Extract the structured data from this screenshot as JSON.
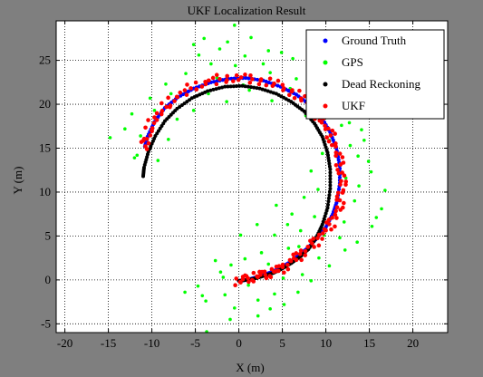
{
  "window": {
    "background": "#7f7f7f"
  },
  "chart_data": {
    "type": "scatter",
    "title": "UKF Localization Result",
    "xlabel": "X (m)",
    "ylabel": "Y (m)",
    "xlim": [
      -21,
      24
    ],
    "ylim": [
      -6,
      29.5
    ],
    "xticks": [
      -20,
      -15,
      -10,
      -5,
      0,
      5,
      10,
      15,
      20
    ],
    "yticks": [
      -5,
      0,
      5,
      10,
      15,
      20,
      25
    ],
    "xtick_labels": [
      "-20",
      "-15",
      "-10",
      "-5",
      "0",
      "5",
      "10",
      "15",
      "20"
    ],
    "ytick_labels": [
      "-5",
      "0",
      "5",
      "10",
      "15",
      "20",
      "25"
    ],
    "grid": "dotted",
    "legend_position": "top-right",
    "legend": [
      {
        "label": "Ground Truth",
        "color": "#0000ff"
      },
      {
        "label": "GPS",
        "color": "#00ff00"
      },
      {
        "label": "Dead Reckoning",
        "color": "#000000"
      },
      {
        "label": "UKF",
        "color": "#ff0000"
      }
    ],
    "series": [
      {
        "name": "Ground Truth",
        "color": "#0000ff",
        "marker": "point",
        "style": "points",
        "points": [
          [
            0,
            -0.1
          ],
          [
            1,
            0.0
          ],
          [
            2,
            0.3
          ],
          [
            3,
            0.6
          ],
          [
            4,
            1.0
          ],
          [
            5,
            1.5
          ],
          [
            6,
            2.1
          ],
          [
            7,
            2.9
          ],
          [
            8,
            3.7
          ],
          [
            9,
            4.8
          ],
          [
            10,
            6.0
          ],
          [
            10.8,
            7.5
          ],
          [
            11.3,
            9.0
          ],
          [
            11.6,
            11.0
          ],
          [
            11.6,
            13.0
          ],
          [
            11.2,
            15.0
          ],
          [
            10.5,
            16.8
          ],
          [
            9.5,
            18.5
          ],
          [
            8.2,
            19.9
          ],
          [
            6.6,
            21.1
          ],
          [
            4.8,
            22.0
          ],
          [
            2.8,
            22.7
          ],
          [
            0.8,
            23.0
          ],
          [
            -1.2,
            22.9
          ],
          [
            -3.2,
            22.5
          ],
          [
            -5.2,
            21.8
          ],
          [
            -7.0,
            20.8
          ],
          [
            -8.5,
            19.6
          ],
          [
            -9.7,
            18.0
          ],
          [
            -10.5,
            16.3
          ],
          [
            -10.8,
            15.2
          ]
        ]
      },
      {
        "name": "GPS",
        "color": "#00ff00",
        "marker": "point",
        "style": "scatter",
        "points": [
          [
            -5.2,
            26.8
          ],
          [
            -0.5,
            29.0
          ],
          [
            -4,
            27.5
          ],
          [
            -1.3,
            27.1
          ],
          [
            1.4,
            27.6
          ],
          [
            3.4,
            26.1
          ],
          [
            6.2,
            25.2
          ],
          [
            8.3,
            24.8
          ],
          [
            9.5,
            23.2
          ],
          [
            11.9,
            20.8
          ],
          [
            13.2,
            19.2
          ],
          [
            14.1,
            17.1
          ],
          [
            14.4,
            15.9
          ],
          [
            13.7,
            14.1
          ],
          [
            15.2,
            12.3
          ],
          [
            16.8,
            10.2
          ],
          [
            16.4,
            8.1
          ],
          [
            15.3,
            6.1
          ],
          [
            13.6,
            4.3
          ],
          [
            12.2,
            3.4
          ],
          [
            10.4,
            1.6
          ],
          [
            8.3,
            -0.1
          ],
          [
            6.8,
            -1.4
          ],
          [
            5.2,
            -2.8
          ],
          [
            3.6,
            -3.3
          ],
          [
            2.2,
            -4.1
          ],
          [
            -1.0,
            -4.5
          ],
          [
            -3.7,
            -5.9
          ],
          [
            -6.2,
            -1.4
          ],
          [
            -4.7,
            -0.7
          ],
          [
            -2.1,
            0.9
          ],
          [
            -0.9,
            1.7
          ],
          [
            0.7,
            2.4
          ],
          [
            2.6,
            3.1
          ],
          [
            4.1,
            5.1
          ],
          [
            5.6,
            6.3
          ],
          [
            7.1,
            5.6
          ],
          [
            8.7,
            7.2
          ],
          [
            7.5,
            9.4
          ],
          [
            9.1,
            10.3
          ],
          [
            8.3,
            12.4
          ],
          [
            9.6,
            14.4
          ],
          [
            11.8,
            17.6
          ],
          [
            10.3,
            19.4
          ],
          [
            6.6,
            22.9
          ],
          [
            2.8,
            24.6
          ],
          [
            -0.4,
            24.4
          ],
          [
            -3.2,
            24.6
          ],
          [
            -6.1,
            23.5
          ],
          [
            -8.4,
            22.3
          ],
          [
            -10.2,
            20.7
          ],
          [
            -12.3,
            18.9
          ],
          [
            -13.1,
            17.2
          ],
          [
            -11.7,
            14.2
          ],
          [
            -9.3,
            13.6
          ],
          [
            -8.1,
            16.0
          ],
          [
            -7.1,
            18.3
          ],
          [
            -5.2,
            19.3
          ],
          [
            -3.5,
            21.2
          ],
          [
            -1.4,
            20.3
          ],
          [
            1.2,
            21.6
          ],
          [
            3.8,
            20.4
          ],
          [
            5.9,
            21.8
          ],
          [
            7.7,
            18.7
          ],
          [
            12.8,
            15.3
          ],
          [
            12.3,
            11.6
          ],
          [
            13.3,
            9.0
          ],
          [
            12.1,
            6.6
          ],
          [
            9.8,
            5.1
          ],
          [
            6.9,
            3.8
          ],
          [
            3.4,
            1.8
          ],
          [
            1.1,
            -0.6
          ],
          [
            -1.6,
            -1.7
          ],
          [
            -3.8,
            -2.4
          ],
          [
            -2.7,
            2.2
          ],
          [
            0.2,
            5.1
          ],
          [
            2.1,
            6.3
          ],
          [
            4.3,
            8.5
          ],
          [
            6.1,
            7.5
          ],
          [
            5.7,
            3.6
          ],
          [
            2.2,
            -2.3
          ],
          [
            -0.5,
            -3.2
          ],
          [
            -4.2,
            -1.8
          ],
          [
            -2.5,
            23.0
          ],
          [
            0.5,
            22.2
          ],
          [
            3.6,
            23.6
          ],
          [
            -7.8,
            21.2
          ],
          [
            -9.7,
            19.3
          ],
          [
            -11.3,
            16.4
          ],
          [
            -12.0,
            13.9
          ],
          [
            14.9,
            13.5
          ],
          [
            10.8,
            21.3
          ],
          [
            8.9,
            21.8
          ],
          [
            4.9,
            25.9
          ],
          [
            12.7,
            17.9
          ],
          [
            15.8,
            7.1
          ],
          [
            -14.8,
            16.2
          ],
          [
            -4.6,
            25.6
          ],
          [
            -2.2,
            26.3
          ],
          [
            0.7,
            25.5
          ],
          [
            9.2,
            2.5
          ],
          [
            11.6,
            4.8
          ],
          [
            13.8,
            10.7
          ],
          [
            10.4,
            15.9
          ],
          [
            7.3,
            0.6
          ],
          [
            5.1,
            0.2
          ],
          [
            4.1,
            -1.6
          ],
          [
            -1.8,
            0.3
          ]
        ]
      },
      {
        "name": "Dead Reckoning",
        "color": "#000000",
        "marker": "point",
        "style": "points",
        "points": [
          [
            0,
            -0.1
          ],
          [
            1,
            0.0
          ],
          [
            2,
            0.2
          ],
          [
            3,
            0.5
          ],
          [
            4,
            0.8
          ],
          [
            5,
            1.3
          ],
          [
            6,
            1.9
          ],
          [
            7,
            2.6
          ],
          [
            8,
            3.5
          ],
          [
            8.9,
            4.8
          ],
          [
            9.6,
            6.3
          ],
          [
            10.2,
            8.2
          ],
          [
            10.5,
            10.4
          ],
          [
            10.5,
            12.6
          ],
          [
            10.2,
            14.5
          ],
          [
            9.6,
            16.3
          ],
          [
            8.7,
            17.8
          ],
          [
            7.5,
            19.2
          ],
          [
            6.0,
            20.3
          ],
          [
            4.3,
            21.2
          ],
          [
            2.4,
            21.8
          ],
          [
            0.4,
            22.1
          ],
          [
            -1.6,
            22.0
          ],
          [
            -3.6,
            21.5
          ],
          [
            -5.4,
            20.7
          ],
          [
            -7.1,
            19.5
          ],
          [
            -8.5,
            18.1
          ],
          [
            -9.6,
            16.4
          ],
          [
            -10.4,
            14.6
          ],
          [
            -10.9,
            12.8
          ],
          [
            -11.0,
            11.8
          ]
        ]
      },
      {
        "name": "UKF",
        "color": "#ff0000",
        "marker": "point",
        "style": "jittered",
        "points": [
          [
            -0.3,
            -0.3
          ],
          [
            0.7,
            0.1
          ],
          [
            1.8,
            0.4
          ],
          [
            2.9,
            0.6
          ],
          [
            4.0,
            0.9
          ],
          [
            5.1,
            1.4
          ],
          [
            6.2,
            2.3
          ],
          [
            7.3,
            3.1
          ],
          [
            8.4,
            4.0
          ],
          [
            9.5,
            5.1
          ],
          [
            10.5,
            6.3
          ],
          [
            11.3,
            7.7
          ],
          [
            11.7,
            9.2
          ],
          [
            11.9,
            10.9
          ],
          [
            11.8,
            12.6
          ],
          [
            11.3,
            14.4
          ],
          [
            10.7,
            16.2
          ],
          [
            9.9,
            17.6
          ],
          [
            8.8,
            19.0
          ],
          [
            7.6,
            20.4
          ],
          [
            6.0,
            21.5
          ],
          [
            4.2,
            22.3
          ],
          [
            2.1,
            22.8
          ],
          [
            0.0,
            23.0
          ],
          [
            -2.1,
            22.9
          ],
          [
            -4.0,
            22.4
          ],
          [
            -5.8,
            21.7
          ],
          [
            -7.5,
            20.6
          ],
          [
            -8.9,
            19.3
          ],
          [
            -10.0,
            17.8
          ],
          [
            -10.6,
            16.2
          ],
          [
            -10.8,
            15.1
          ]
        ]
      }
    ]
  }
}
